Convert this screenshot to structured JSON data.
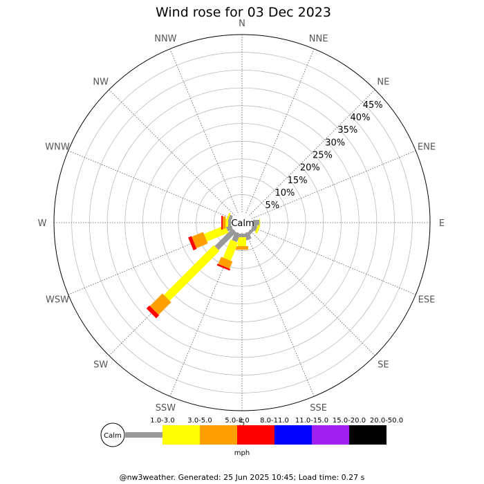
{
  "chart_data": {
    "type": "wind-rose",
    "title": "Wind rose for 03 Dec 2023",
    "directions": [
      "N",
      "NNE",
      "NE",
      "ENE",
      "E",
      "ESE",
      "SE",
      "SSE",
      "S",
      "SSW",
      "SW",
      "WSW",
      "W",
      "WNW",
      "NW",
      "NNW"
    ],
    "ring_labels": [
      "5%",
      "10%",
      "15%",
      "20%",
      "25%",
      "30%",
      "35%",
      "40%",
      "45%"
    ],
    "r_max_percent": 50,
    "calm_label": "Calm",
    "speed_bins": [
      {
        "label": "1.0-3.0",
        "color": "#999999"
      },
      {
        "label": "3.0-5.0",
        "color": "#ffff00"
      },
      {
        "label": "5.0-8.0",
        "color": "#ffa000"
      },
      {
        "label": "8.0-11.0",
        "color": "#ff0000"
      },
      {
        "label": "11.0-15.0",
        "color": "#0000ff"
      },
      {
        "label": "15.0-20.0",
        "color": "#a020f0"
      },
      {
        "label": "20.0-50.0",
        "color": "#000000"
      }
    ],
    "units": "mph",
    "series": [
      {
        "direction": "E",
        "values": [
          1.8,
          0.2,
          0,
          0,
          0,
          0,
          0
        ]
      },
      {
        "direction": "ESE",
        "values": [
          1.3,
          0.7,
          0,
          0,
          0,
          0,
          0
        ]
      },
      {
        "direction": "SE",
        "values": [
          0.9,
          0,
          0,
          0,
          0,
          0,
          0
        ]
      },
      {
        "direction": "SSE",
        "values": [
          2.0,
          0,
          0,
          0,
          0,
          0,
          0
        ]
      },
      {
        "direction": "S",
        "values": [
          1.0,
          2.5,
          1.0,
          0,
          0,
          0,
          0
        ]
      },
      {
        "direction": "SSW",
        "values": [
          2.5,
          5.5,
          2.2,
          0.5,
          0,
          0,
          0
        ]
      },
      {
        "direction": "SW",
        "values": [
          7.0,
          19.8,
          5.0,
          1.2,
          0,
          0,
          0
        ]
      },
      {
        "direction": "WSW",
        "values": [
          1.5,
          6.5,
          3.5,
          1.0,
          0,
          0,
          0
        ]
      },
      {
        "direction": "W",
        "values": [
          0.8,
          0.7,
          0.8,
          0.4,
          0,
          0,
          0
        ]
      },
      {
        "direction": "WNW",
        "values": [
          0.8,
          0.5,
          0,
          0,
          0,
          0,
          0
        ]
      }
    ]
  },
  "footer": "@nw3weather. Generated: 25 Jun 2025 10:45; Load time: 0.27 s"
}
